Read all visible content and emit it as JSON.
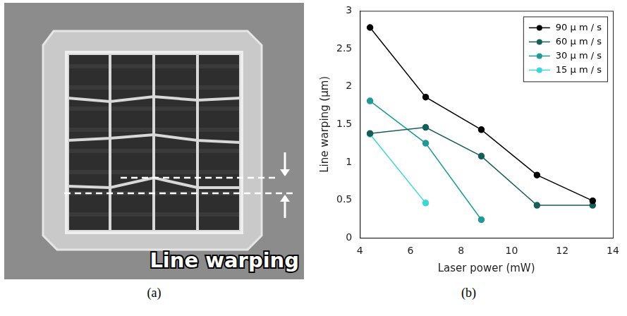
{
  "figure": {
    "panel_a": {
      "caption": "(a)",
      "annotation": "Line warping"
    },
    "panel_b": {
      "caption": "(b)"
    }
  },
  "chart_data": {
    "type": "line",
    "x_label": "Laser power (mW)",
    "y_label": "Line warping (μm)",
    "xlim": [
      4,
      14
    ],
    "xticks": [
      4,
      6,
      8,
      10,
      12,
      14
    ],
    "ylim": [
      0,
      3
    ],
    "yticks": [
      0,
      0.5,
      1,
      1.5,
      2,
      2.5,
      3
    ],
    "grid": false,
    "legend": "upper right",
    "marker": "circle",
    "line_style": "solid",
    "series": [
      {
        "name": "90 μ m / s",
        "color": "#000000",
        "x": [
          4.4,
          6.6,
          8.8,
          11,
          13.2
        ],
        "values": [
          2.78,
          1.86,
          1.43,
          0.83,
          0.49
        ]
      },
      {
        "name": "60 μ m / s",
        "color": "#175e58",
        "x": [
          4.4,
          6.6,
          8.8,
          11,
          13.2
        ],
        "values": [
          1.38,
          1.46,
          1.08,
          0.43,
          0.43
        ]
      },
      {
        "name": "30 μ m / s",
        "color": "#1f9a96",
        "x": [
          4.4,
          6.6,
          8.8
        ],
        "values": [
          1.81,
          1.25,
          0.24
        ]
      },
      {
        "name": "15 μ m / s",
        "color": "#3fd6d6",
        "x": [
          4.4,
          6.6
        ],
        "values": [
          1.37,
          0.46
        ]
      }
    ]
  }
}
